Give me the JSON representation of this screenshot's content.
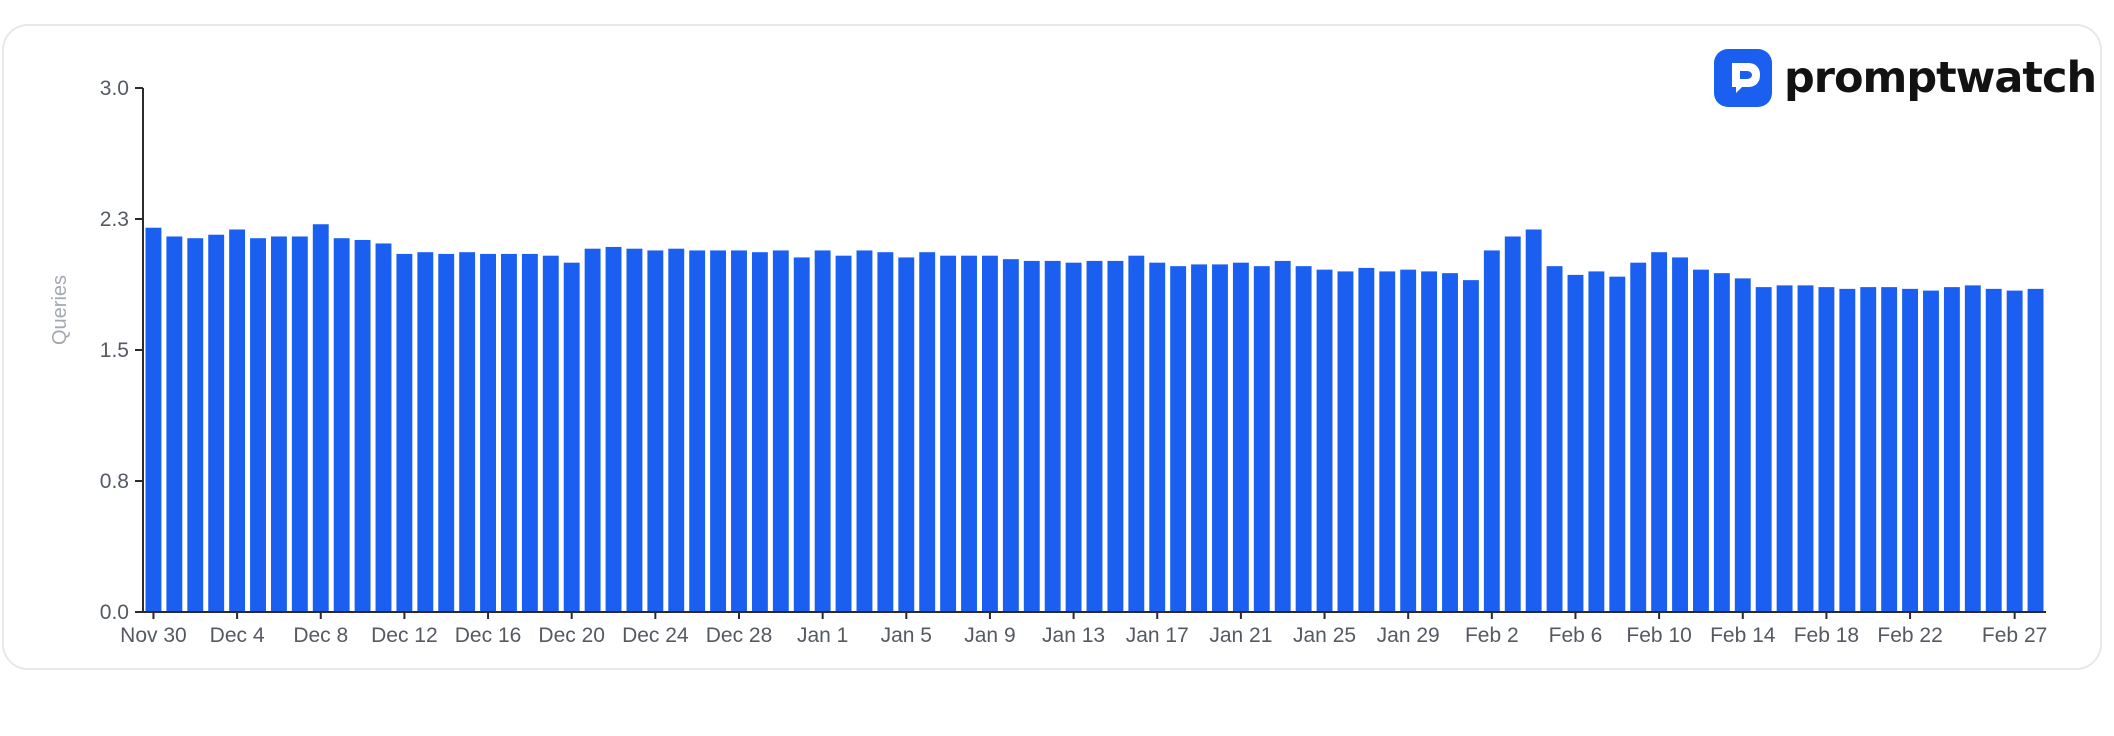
{
  "brand": {
    "name": "promptwatch",
    "icon": "promptwatch-logo-icon",
    "color": "#1a5ff0"
  },
  "chart_data": {
    "type": "bar",
    "title": "",
    "xlabel": "",
    "ylabel": "Queries",
    "ylim": [
      0,
      3
    ],
    "yticks": [
      "0.0",
      "0.8",
      "1.5",
      "2.3",
      "3.0"
    ],
    "ytick_values": [
      0,
      0.75,
      1.5,
      2.25,
      3.0
    ],
    "grid": false,
    "legend": "none",
    "bar_color": "#1a5ff0",
    "x_tick_labels": [
      {
        "label": "Nov 30",
        "index": 0
      },
      {
        "label": "Dec 4",
        "index": 4
      },
      {
        "label": "Dec 8",
        "index": 8
      },
      {
        "label": "Dec 12",
        "index": 12
      },
      {
        "label": "Dec 16",
        "index": 16
      },
      {
        "label": "Dec 20",
        "index": 20
      },
      {
        "label": "Dec 24",
        "index": 24
      },
      {
        "label": "Dec 28",
        "index": 28
      },
      {
        "label": "Jan 1",
        "index": 32
      },
      {
        "label": "Jan 5",
        "index": 36
      },
      {
        "label": "Jan 9",
        "index": 40
      },
      {
        "label": "Jan 13",
        "index": 44
      },
      {
        "label": "Jan 17",
        "index": 48
      },
      {
        "label": "Jan 21",
        "index": 52
      },
      {
        "label": "Jan 25",
        "index": 56
      },
      {
        "label": "Jan 29",
        "index": 60
      },
      {
        "label": "Feb 2",
        "index": 64
      },
      {
        "label": "Feb 6",
        "index": 68
      },
      {
        "label": "Feb 10",
        "index": 72
      },
      {
        "label": "Feb 14",
        "index": 76
      },
      {
        "label": "Feb 18",
        "index": 80
      },
      {
        "label": "Feb 22",
        "index": 84
      },
      {
        "label": "Feb 27",
        "index": 89
      }
    ],
    "values": [
      2.2,
      2.15,
      2.14,
      2.16,
      2.19,
      2.14,
      2.15,
      2.15,
      2.22,
      2.14,
      2.13,
      2.11,
      2.05,
      2.06,
      2.05,
      2.06,
      2.05,
      2.05,
      2.05,
      2.04,
      2.0,
      2.08,
      2.09,
      2.08,
      2.07,
      2.08,
      2.07,
      2.07,
      2.07,
      2.06,
      2.07,
      2.03,
      2.07,
      2.04,
      2.07,
      2.06,
      2.03,
      2.06,
      2.04,
      2.04,
      2.04,
      2.02,
      2.01,
      2.01,
      2.0,
      2.01,
      2.01,
      2.04,
      2.0,
      1.98,
      1.99,
      1.99,
      2.0,
      1.98,
      2.01,
      1.98,
      1.96,
      1.95,
      1.97,
      1.95,
      1.96,
      1.95,
      1.94,
      1.9,
      2.07,
      2.15,
      2.19,
      1.98,
      1.93,
      1.95,
      1.92,
      2.0,
      2.06,
      2.03,
      1.96,
      1.94,
      1.91,
      1.86,
      1.87,
      1.87,
      1.86,
      1.85,
      1.86,
      1.86,
      1.85,
      1.84,
      1.86,
      1.87,
      1.85,
      1.84,
      1.85
    ]
  }
}
